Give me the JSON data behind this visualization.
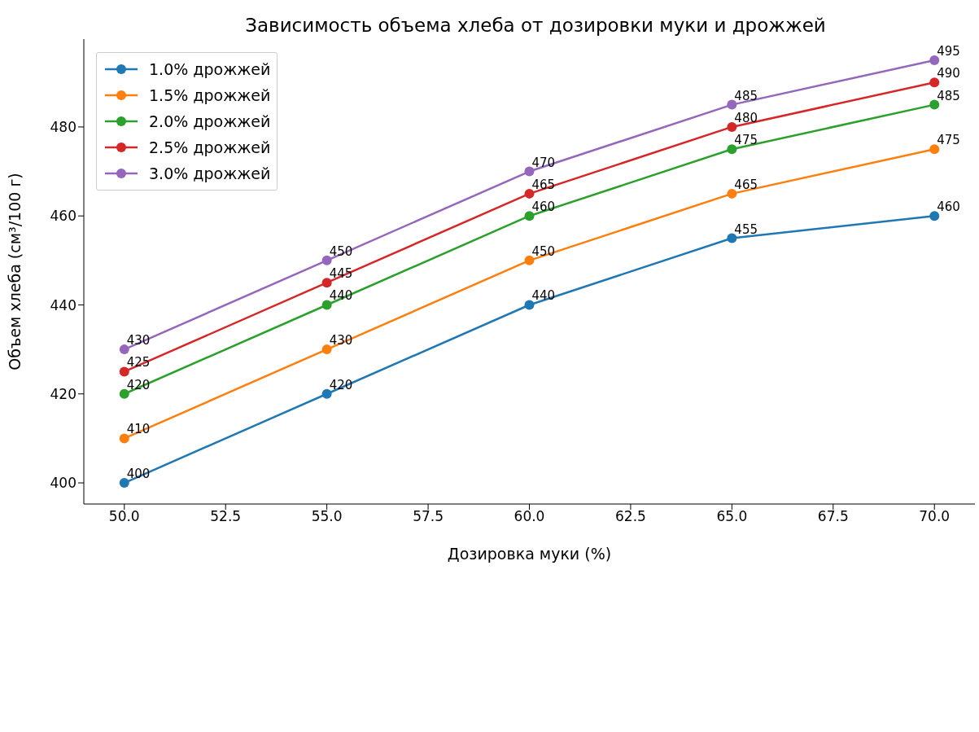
{
  "chart_data": {
    "type": "line",
    "title": "Зависимость объема хлеба от дозировки муки и дрожжей",
    "xlabel": "Дозировка муки (%)",
    "ylabel": "Объем хлеба (см³/100 г)",
    "x": [
      50,
      55,
      60,
      65,
      70
    ],
    "series": [
      {
        "name": "1.0% дрожжей",
        "color": "#1f77b4",
        "values": [
          400,
          420,
          440,
          455,
          460
        ]
      },
      {
        "name": "1.5% дрожжей",
        "color": "#ff7f0e",
        "values": [
          410,
          430,
          450,
          465,
          475
        ]
      },
      {
        "name": "2.0% дрожжей",
        "color": "#2ca02c",
        "values": [
          420,
          440,
          460,
          475,
          485
        ]
      },
      {
        "name": "2.5% дрожжей",
        "color": "#d62728",
        "values": [
          425,
          445,
          465,
          480,
          490
        ]
      },
      {
        "name": "3.0% дрожжей",
        "color": "#9467bd",
        "values": [
          430,
          450,
          470,
          485,
          495
        ]
      }
    ],
    "xlim": [
      49,
      71
    ],
    "ylim": [
      395.25,
      499.75
    ],
    "xticks": [
      {
        "value": 50,
        "label": "50.0"
      },
      {
        "value": 52.5,
        "label": "52.5"
      },
      {
        "value": 55,
        "label": "55.0"
      },
      {
        "value": 57.5,
        "label": "57.5"
      },
      {
        "value": 60,
        "label": "60.0"
      },
      {
        "value": 62.5,
        "label": "62.5"
      },
      {
        "value": 65,
        "label": "65.0"
      },
      {
        "value": 67.5,
        "label": "67.5"
      },
      {
        "value": 70,
        "label": "70.0"
      }
    ],
    "yticks": [
      400,
      420,
      440,
      460,
      480
    ],
    "grid": false,
    "legend": "top left",
    "marker": "circle",
    "line_style": "solid",
    "data_labels": true
  }
}
